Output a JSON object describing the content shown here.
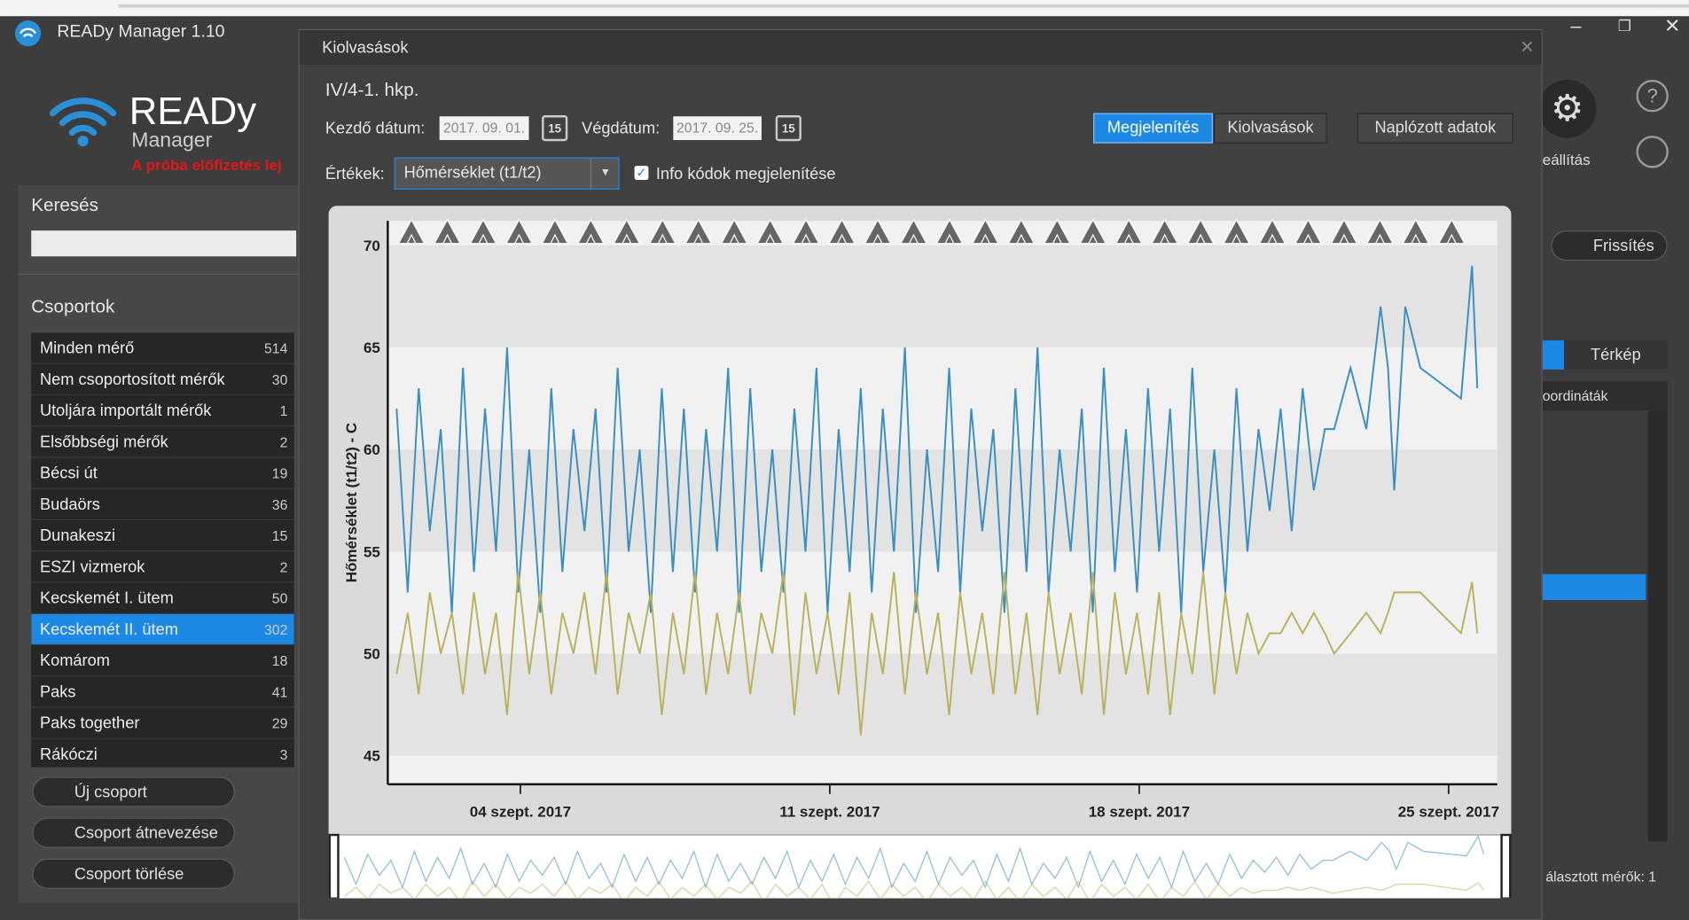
{
  "window": {
    "title": "READy Manager 1.10"
  },
  "sidebar": {
    "logo_title": "READy",
    "logo_subtitle": "Manager",
    "trial_notice": "A próba előfizetés lej",
    "search_label": "Keresés",
    "groups_label": "Csoportok",
    "groups": [
      {
        "name": "Minden mérő",
        "count": 514
      },
      {
        "name": "Nem csoportosított mérők",
        "count": 30
      },
      {
        "name": "Utoljára importált mérők",
        "count": 1
      },
      {
        "name": "Elsőbbségi mérők",
        "count": 2
      },
      {
        "name": "Bécsi út",
        "count": 19
      },
      {
        "name": "Budaörs",
        "count": 36
      },
      {
        "name": "Dunakeszi",
        "count": 15
      },
      {
        "name": "ESZI vizmerok",
        "count": 2
      },
      {
        "name": "Kecskemét I. ütem",
        "count": 50
      },
      {
        "name": "Kecskemét II. ütem",
        "count": 302,
        "selected": true
      },
      {
        "name": "Komárom",
        "count": 18
      },
      {
        "name": "Paks",
        "count": 41
      },
      {
        "name": "Paks together",
        "count": 29
      },
      {
        "name": "Rákóczi",
        "count": 3
      }
    ],
    "buttons": [
      "Új csoport",
      "Csoport átnevezése",
      "Csoport törlése"
    ]
  },
  "right_panel": {
    "settings_label": "eállítás",
    "refresh": "Frissítés",
    "map_tab": "Térkép",
    "coords_header": "oordináták",
    "selected_meters": "álasztott mérők: 1"
  },
  "dialog": {
    "title": "Kiolvasások",
    "meter": "IV/4-1. hkp.",
    "start_label": "Kezdő dátum:",
    "start_date": "2017. 09. 01.",
    "end_label": "Végdátum:",
    "end_date": "2017. 09. 25.",
    "calendar_icon": "15",
    "buttons": [
      "Megjelenítés",
      "Kiolvasások",
      "Naplózott adatok"
    ],
    "values_label": "Értékek:",
    "values_select": "Hőmérséklet (t1/t2)",
    "info_codes_label": "Info kódok megjelenítése"
  },
  "chart_data": {
    "type": "line",
    "y_label": "Hőmérséklet (t1/t2) - C",
    "x": [
      1.2,
      1.45,
      1.7,
      1.95,
      2.2,
      2.45,
      2.7,
      2.95,
      3.2,
      3.45,
      3.7,
      3.95,
      4.2,
      4.45,
      4.7,
      4.95,
      5.2,
      5.45,
      5.7,
      5.95,
      6.2,
      6.45,
      6.7,
      6.95,
      7.2,
      7.45,
      7.7,
      7.95,
      8.2,
      8.45,
      8.7,
      8.95,
      9.2,
      9.45,
      9.7,
      9.95,
      10.2,
      10.45,
      10.7,
      10.95,
      11.2,
      11.45,
      11.7,
      11.95,
      12.2,
      12.45,
      12.7,
      12.95,
      13.2,
      13.45,
      13.7,
      13.95,
      14.2,
      14.45,
      14.7,
      14.95,
      15.2,
      15.45,
      15.7,
      15.95,
      16.2,
      16.45,
      16.7,
      16.95,
      17.2,
      17.45,
      17.7,
      17.95,
      18.2,
      18.45,
      18.7,
      18.95,
      19.2,
      19.45,
      19.7,
      19.95,
      20.2,
      20.45,
      20.7,
      20.95,
      21.2,
      21.45,
      21.7,
      21.95,
      22.2,
      22.41,
      22.78,
      23.14,
      23.46,
      23.63,
      23.77,
      24.02,
      24.36,
      25.28,
      25.53,
      25.65
    ],
    "series": [
      {
        "color": "#3a8fc0",
        "values": [
          62,
          53,
          63,
          56,
          61,
          52,
          64,
          54,
          62,
          55,
          65,
          53,
          60,
          52,
          63,
          54,
          61,
          56,
          62,
          53,
          64,
          55,
          60,
          52,
          63,
          54,
          62,
          53,
          61,
          55,
          64,
          52,
          63,
          54,
          60,
          53,
          62,
          55,
          64,
          52,
          61,
          54,
          63,
          53,
          62,
          55,
          65,
          52,
          60,
          54,
          64,
          53,
          62,
          56,
          61,
          52,
          63,
          54,
          65,
          53,
          60,
          55,
          62,
          52,
          64,
          54,
          61,
          53,
          63,
          55,
          62,
          52,
          64,
          54,
          60,
          53,
          63,
          55,
          61,
          57,
          62,
          56,
          63,
          58,
          61,
          61,
          64,
          61,
          67,
          64,
          58,
          67,
          64,
          62.5,
          69,
          63
        ]
      },
      {
        "color": "#b8b25e",
        "values": [
          49,
          52,
          48,
          53,
          50,
          52,
          48,
          53,
          49,
          52,
          47,
          54,
          49,
          53,
          48,
          52,
          50,
          53,
          49,
          54,
          48,
          52,
          50,
          53,
          47,
          52,
          49,
          54,
          48,
          52,
          49,
          53,
          48,
          52,
          50,
          54,
          47,
          53,
          49,
          52,
          48,
          53,
          46,
          52,
          49,
          54,
          48,
          53,
          49,
          52,
          47,
          53,
          49,
          52,
          48,
          54,
          48,
          52,
          47,
          53,
          49,
          52,
          48,
          54,
          47,
          53,
          49,
          52,
          48,
          53,
          47,
          52,
          49,
          54,
          48,
          53,
          49,
          52,
          50,
          51,
          51,
          52,
          51,
          52,
          51,
          50,
          51,
          52,
          51,
          52,
          53,
          53,
          53,
          51,
          53.5,
          51
        ]
      }
    ],
    "xlim": [
      1,
      26.1
    ],
    "xticks": [
      {
        "value": 4,
        "label": "04 szept. 2017"
      },
      {
        "value": 11,
        "label": "11 szept. 2017"
      },
      {
        "value": 18,
        "label": "18 szept. 2017"
      },
      {
        "value": 25,
        "label": "25 szept. 2017"
      }
    ],
    "ylim": [
      43.6,
      71.2
    ],
    "yticks": [
      45,
      50,
      55,
      60,
      65,
      70
    ],
    "grid": true
  }
}
